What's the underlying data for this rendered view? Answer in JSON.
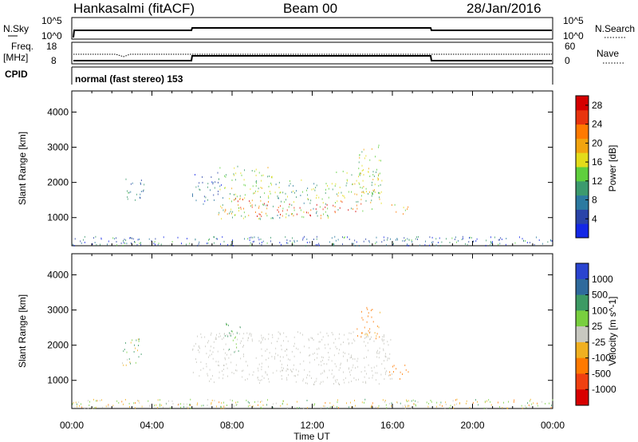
{
  "header": {
    "station": "Hankasalmi (fitACF)",
    "beam": "Beam 00",
    "date": "28/Jan/2016"
  },
  "summary": {
    "nsky_label": "N.Sky",
    "nsearch_label": "N.Search",
    "freq_label": "Freq.",
    "freq_unit": "[MHz]",
    "nave_label": "Nave",
    "cpid_label": "CPID",
    "cpid_text": "normal (fast stereo) 153",
    "nsky_ticks": [
      "10^5",
      "10^0"
    ],
    "nsearch_ticks": [
      "10^5",
      "10^0"
    ],
    "freq_ticks": [
      "18",
      "8"
    ],
    "nave_ticks": [
      "60",
      "0"
    ]
  },
  "colors": {
    "power": [
      "#1428e6",
      "#2a44a8",
      "#2c7aa0",
      "#3c9a6e",
      "#5fcf3d",
      "#e3dc1a",
      "#f2a40f",
      "#ff7a00",
      "#e8340e",
      "#d50000"
    ],
    "velocity": [
      "#2a44d0",
      "#2f6a9c",
      "#3d9a64",
      "#79cf3f",
      "#c8c8c0",
      "#f0b020",
      "#ff7a00",
      "#f04010",
      "#d80000"
    ]
  },
  "chart_data": [
    {
      "type": "heatmap",
      "ylabel": "Slant Range [km]",
      "xlabel": "Time UT",
      "xticks": [
        "00:00",
        "04:00",
        "08:00",
        "12:00",
        "16:00",
        "20:00",
        "00:00"
      ],
      "yticks": [
        "1000",
        "2000",
        "3000",
        "4000"
      ],
      "ylim": [
        200,
        4600
      ],
      "xlim_hours": [
        0,
        24
      ],
      "colorbar_label": "Power [dB]",
      "colorbar_ticks": [
        "4",
        "8",
        "12",
        "16",
        "20",
        "24",
        "28"
      ],
      "colorbar_range": [
        0,
        30
      ],
      "regions": [
        {
          "t": [
            2.5,
            3.6
          ],
          "range": [
            1450,
            2200
          ],
          "level": 8
        },
        {
          "t": [
            6.0,
            7.6
          ],
          "range": [
            1400,
            2300
          ],
          "level": 6
        },
        {
          "t": [
            7.3,
            10.0
          ],
          "range": [
            950,
            2500
          ],
          "level": 14
        },
        {
          "t": [
            7.6,
            9.8
          ],
          "range": [
            1050,
            1600
          ],
          "level": 24
        },
        {
          "t": [
            10.0,
            13.0
          ],
          "range": [
            1000,
            2100
          ],
          "level": 12
        },
        {
          "t": [
            10.2,
            12.8
          ],
          "range": [
            1000,
            1400
          ],
          "level": 27
        },
        {
          "t": [
            13.0,
            15.5
          ],
          "range": [
            1200,
            2400
          ],
          "level": 14
        },
        {
          "t": [
            13.0,
            14.5
          ],
          "range": [
            1150,
            1500
          ],
          "level": 26
        },
        {
          "t": [
            14.3,
            15.5
          ],
          "range": [
            1700,
            3100
          ],
          "level": 16
        },
        {
          "t": [
            15.8,
            16.8
          ],
          "range": [
            1100,
            1400
          ],
          "level": 18
        }
      ]
    },
    {
      "type": "heatmap",
      "ylabel": "Slant Range [km]",
      "xlabel": "Time UT",
      "xticks": [
        "00:00",
        "04:00",
        "08:00",
        "12:00",
        "16:00",
        "20:00",
        "00:00"
      ],
      "yticks": [
        "1000",
        "2000",
        "3000",
        "4000"
      ],
      "ylim": [
        200,
        4600
      ],
      "xlim_hours": [
        0,
        24
      ],
      "colorbar_label": "Velocity [m s^-1]",
      "colorbar_ticks": [
        "1000",
        "500",
        "100",
        "25",
        "-25",
        "-100",
        "-500",
        "-1000"
      ],
      "regions": [
        {
          "t": [
            2.5,
            3.6
          ],
          "range": [
            1450,
            2200
          ],
          "velocity": 50
        },
        {
          "t": [
            6.0,
            16.0
          ],
          "range": [
            900,
            2400
          ],
          "velocity": 0
        },
        {
          "t": [
            7.6,
            8.4
          ],
          "range": [
            1800,
            2700
          ],
          "velocity": 150
        },
        {
          "t": [
            15.8,
            16.8
          ],
          "range": [
            1050,
            1450
          ],
          "velocity": -300
        },
        {
          "t": [
            14.2,
            15.4
          ],
          "range": [
            2200,
            3100
          ],
          "velocity": -200
        }
      ]
    }
  ]
}
